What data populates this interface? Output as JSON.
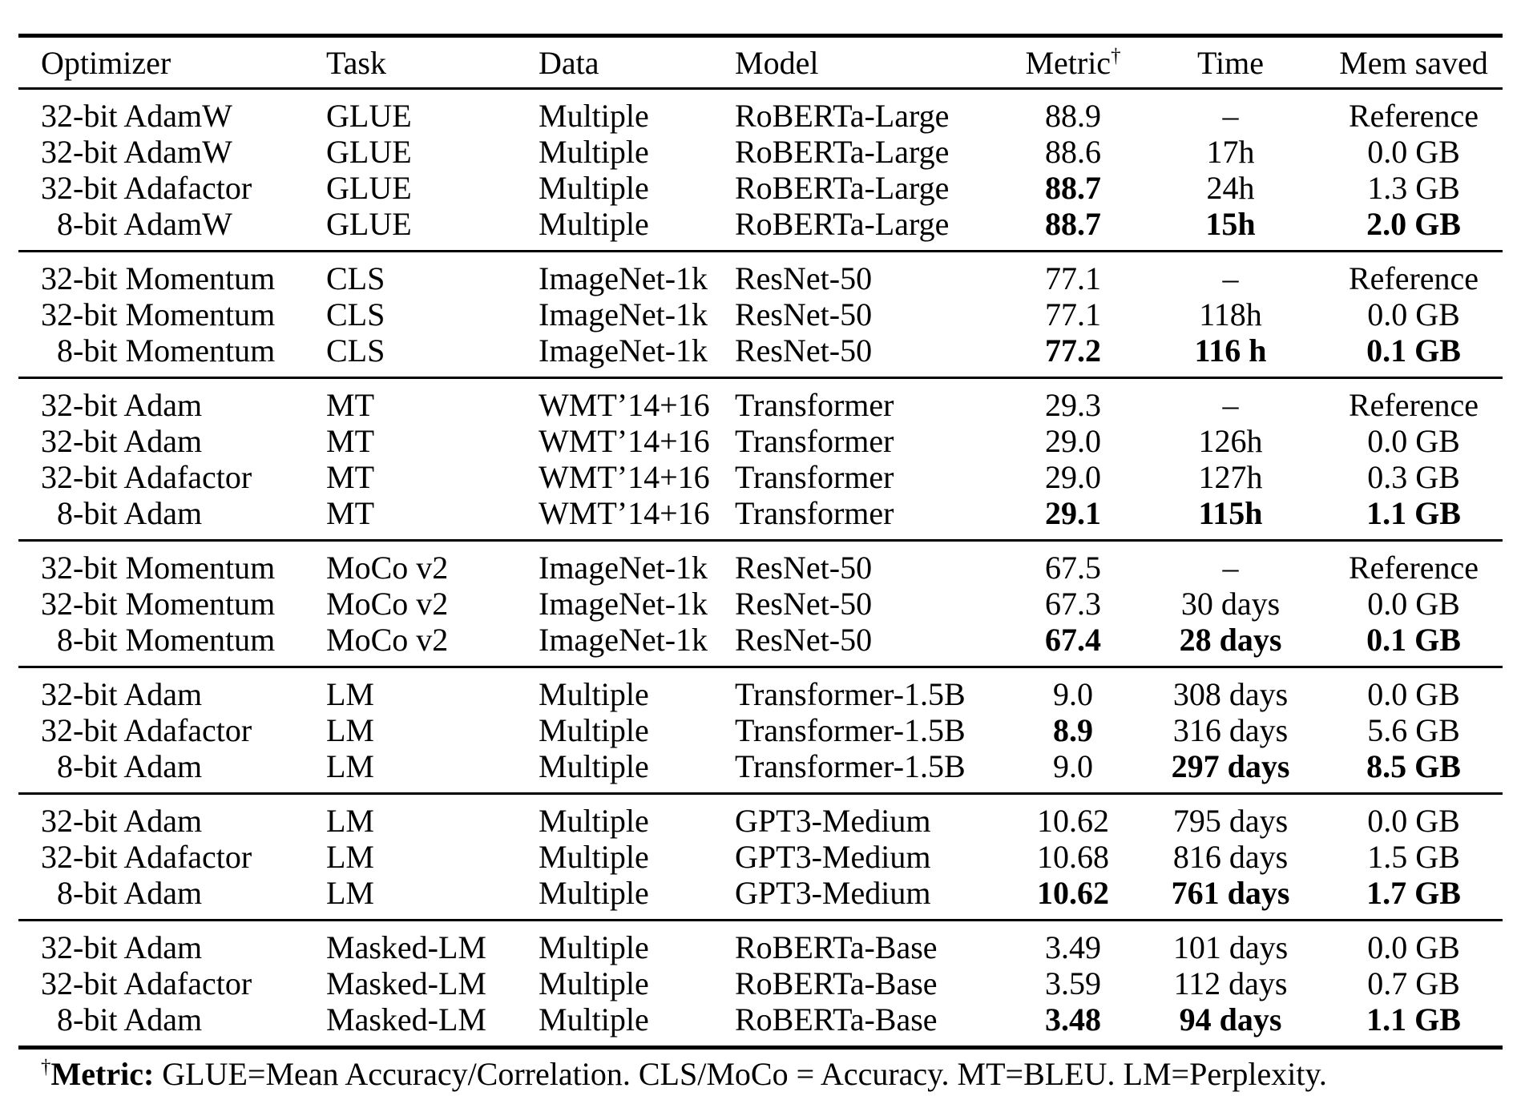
{
  "table": {
    "columns": [
      {
        "label": "Optimizer"
      },
      {
        "label": "Task"
      },
      {
        "label": "Data"
      },
      {
        "label": "Model"
      },
      {
        "label": "Metric",
        "sup": "†"
      },
      {
        "label": "Time"
      },
      {
        "label": "Mem saved"
      }
    ],
    "sections": [
      {
        "rows": [
          {
            "cells": [
              "32-bit AdamW",
              "GLUE",
              "Multiple",
              "RoBERTa-Large",
              "88.9",
              "–",
              "Reference"
            ],
            "bold": []
          },
          {
            "cells": [
              "32-bit AdamW",
              "GLUE",
              "Multiple",
              "RoBERTa-Large",
              "88.6",
              "17h",
              "0.0 GB"
            ],
            "bold": []
          },
          {
            "cells": [
              "32-bit Adafactor",
              "GLUE",
              "Multiple",
              "RoBERTa-Large",
              "88.7",
              "24h",
              "1.3 GB"
            ],
            "bold": [
              4
            ]
          },
          {
            "cells": [
              "8-bit AdamW",
              "GLUE",
              "Multiple",
              "RoBERTa-Large",
              "88.7",
              "15h",
              "2.0 GB"
            ],
            "bold": [
              4,
              5,
              6
            ]
          }
        ]
      },
      {
        "rows": [
          {
            "cells": [
              "32-bit Momentum",
              "CLS",
              "ImageNet-1k",
              "ResNet-50",
              "77.1",
              "–",
              "Reference"
            ],
            "bold": []
          },
          {
            "cells": [
              "32-bit Momentum",
              "CLS",
              "ImageNet-1k",
              "ResNet-50",
              "77.1",
              "118h",
              "0.0 GB"
            ],
            "bold": []
          },
          {
            "cells": [
              "8-bit Momentum",
              "CLS",
              "ImageNet-1k",
              "ResNet-50",
              "77.2",
              "116 h",
              "0.1 GB"
            ],
            "bold": [
              4,
              5,
              6
            ]
          }
        ]
      },
      {
        "rows": [
          {
            "cells": [
              "32-bit Adam",
              "MT",
              "WMT’14+16",
              "Transformer",
              "29.3",
              "–",
              "Reference"
            ],
            "bold": []
          },
          {
            "cells": [
              "32-bit Adam",
              "MT",
              "WMT’14+16",
              "Transformer",
              "29.0",
              "126h",
              "0.0 GB"
            ],
            "bold": []
          },
          {
            "cells": [
              "32-bit Adafactor",
              "MT",
              "WMT’14+16",
              "Transformer",
              "29.0",
              "127h",
              "0.3 GB"
            ],
            "bold": []
          },
          {
            "cells": [
              "8-bit Adam",
              "MT",
              "WMT’14+16",
              "Transformer",
              "29.1",
              "115h",
              "1.1 GB"
            ],
            "bold": [
              4,
              5,
              6
            ]
          }
        ]
      },
      {
        "rows": [
          {
            "cells": [
              "32-bit Momentum",
              "MoCo v2",
              "ImageNet-1k",
              "ResNet-50",
              "67.5",
              "–",
              "Reference"
            ],
            "bold": []
          },
          {
            "cells": [
              "32-bit Momentum",
              "MoCo v2",
              "ImageNet-1k",
              "ResNet-50",
              "67.3",
              "30 days",
              "0.0 GB"
            ],
            "bold": []
          },
          {
            "cells": [
              "8-bit Momentum",
              "MoCo v2",
              "ImageNet-1k",
              "ResNet-50",
              "67.4",
              "28 days",
              "0.1 GB"
            ],
            "bold": [
              4,
              5,
              6
            ]
          }
        ]
      },
      {
        "rows": [
          {
            "cells": [
              "32-bit Adam",
              "LM",
              "Multiple",
              "Transformer-1.5B",
              "9.0",
              "308 days",
              "0.0 GB"
            ],
            "bold": []
          },
          {
            "cells": [
              "32-bit Adafactor",
              "LM",
              "Multiple",
              "Transformer-1.5B",
              "8.9",
              "316 days",
              "5.6 GB"
            ],
            "bold": [
              4
            ]
          },
          {
            "cells": [
              "8-bit Adam",
              "LM",
              "Multiple",
              "Transformer-1.5B",
              "9.0",
              "297 days",
              "8.5 GB"
            ],
            "bold": [
              5,
              6
            ]
          }
        ]
      },
      {
        "rows": [
          {
            "cells": [
              "32-bit Adam",
              "LM",
              "Multiple",
              "GPT3-Medium",
              "10.62",
              "795 days",
              "0.0 GB"
            ],
            "bold": []
          },
          {
            "cells": [
              "32-bit Adafactor",
              "LM",
              "Multiple",
              "GPT3-Medium",
              "10.68",
              "816 days",
              "1.5 GB"
            ],
            "bold": []
          },
          {
            "cells": [
              "8-bit Adam",
              "LM",
              "Multiple",
              "GPT3-Medium",
              "10.62",
              "761 days",
              "1.7 GB"
            ],
            "bold": [
              4,
              5,
              6
            ]
          }
        ]
      },
      {
        "rows": [
          {
            "cells": [
              "32-bit Adam",
              "Masked-LM",
              "Multiple",
              "RoBERTa-Base",
              "3.49",
              "101 days",
              "0.0 GB"
            ],
            "bold": []
          },
          {
            "cells": [
              "32-bit Adafactor",
              "Masked-LM",
              "Multiple",
              "RoBERTa-Base",
              "3.59",
              "112 days",
              "0.7 GB"
            ],
            "bold": []
          },
          {
            "cells": [
              "8-bit Adam",
              "Masked-LM",
              "Multiple",
              "RoBERTa-Base",
              "3.48",
              "94 days",
              "1.1 GB"
            ],
            "bold": [
              4,
              5,
              6
            ]
          }
        ]
      }
    ]
  },
  "footnote": {
    "marker": "†",
    "label": "Metric:",
    "text": " GLUE=Mean Accuracy/Correlation. CLS/MoCo = Accuracy. MT=BLEU. LM=Perplexity."
  }
}
